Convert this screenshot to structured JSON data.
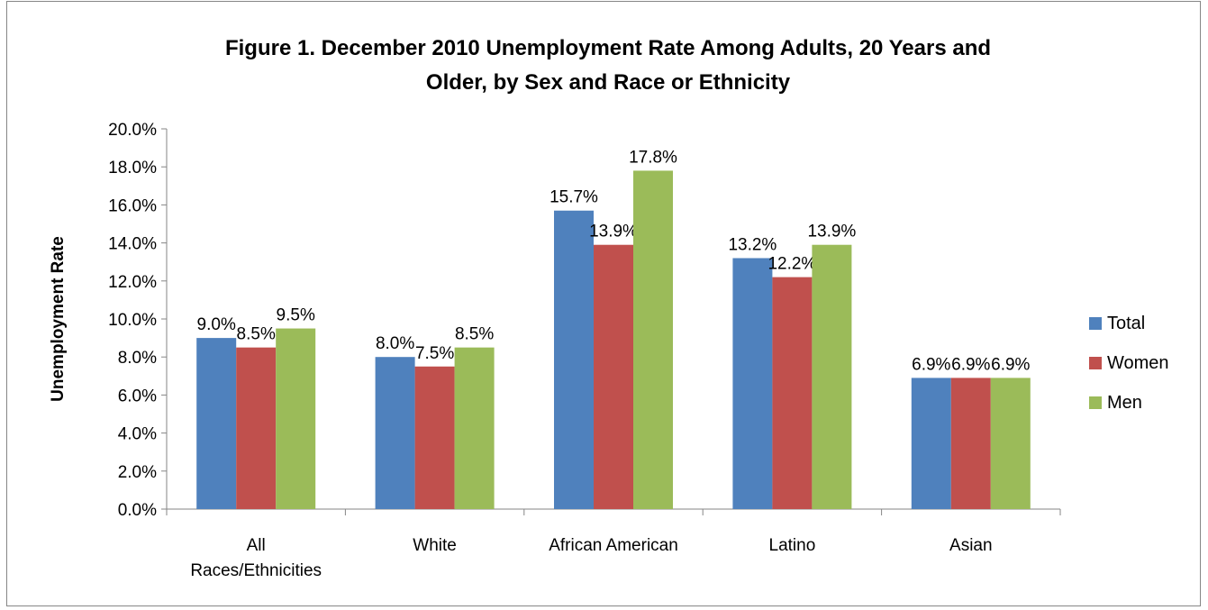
{
  "chart_data": {
    "type": "bar",
    "title_line1": "Figure 1.  December 2010 Unemployment Rate Among Adults, 20 Years and",
    "title_line2": "Older, by Sex and Race or Ethnicity",
    "ylabel": "Unemployment Rate",
    "xlabel": "",
    "ylim": [
      0,
      20
    ],
    "y_ticks": [
      "0.0%",
      "2.0%",
      "4.0%",
      "6.0%",
      "8.0%",
      "10.0%",
      "12.0%",
      "14.0%",
      "16.0%",
      "18.0%",
      "20.0%"
    ],
    "categories": [
      [
        "All",
        "Races/Ethnicities"
      ],
      [
        "White"
      ],
      [
        "African American"
      ],
      [
        "Latino"
      ],
      [
        "Asian"
      ]
    ],
    "series": [
      {
        "name": "Total",
        "color": "#4f81bd",
        "values": [
          9.0,
          8.0,
          15.7,
          13.2,
          6.9
        ],
        "labels": [
          "9.0%",
          "8.0%",
          "15.7%",
          "13.2%",
          "6.9%"
        ]
      },
      {
        "name": "Women",
        "color": "#c0504d",
        "values": [
          8.5,
          7.5,
          13.9,
          12.2,
          6.9
        ],
        "labels": [
          "8.5%",
          "7.5%",
          "13.9%",
          "12.2%",
          "6.9%"
        ]
      },
      {
        "name": "Men",
        "color": "#9bbb59",
        "values": [
          9.5,
          8.5,
          17.8,
          13.9,
          6.9
        ],
        "labels": [
          "9.5%",
          "8.5%",
          "17.8%",
          "13.9%",
          "6.9%"
        ]
      }
    ],
    "legend_position": "right",
    "grid": false
  }
}
